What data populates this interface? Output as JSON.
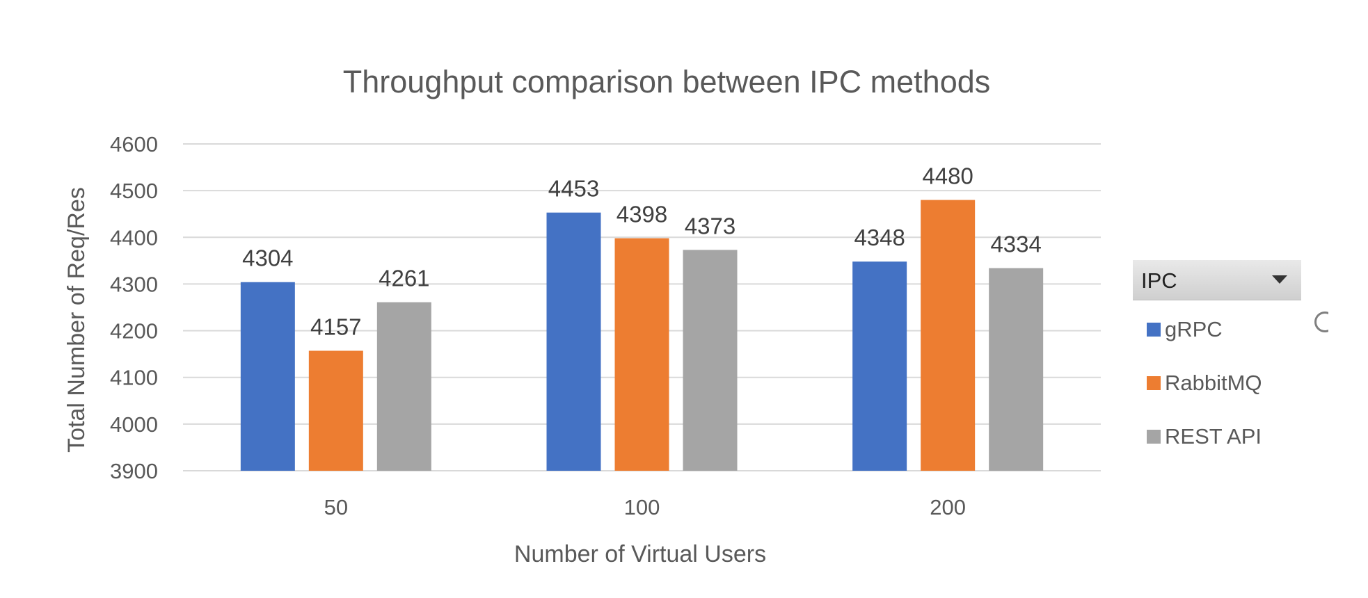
{
  "chart_data": {
    "type": "bar",
    "title": "Throughput comparison between IPC methods",
    "xlabel": "Number of Virtual Users",
    "ylabel": "Total Number of Req/Res",
    "categories": [
      "50",
      "100",
      "200"
    ],
    "ylim": [
      3900,
      4600
    ],
    "yticks": [
      3900,
      4000,
      4100,
      4200,
      4300,
      4400,
      4500,
      4600
    ],
    "grid": true,
    "legend_position": "right",
    "series": [
      {
        "name": "gRPC",
        "color": "#4472c4",
        "values": [
          4304,
          4453,
          4348
        ]
      },
      {
        "name": "RabbitMQ",
        "color": "#ed7d31",
        "values": [
          4157,
          4398,
          4480
        ]
      },
      {
        "name": "REST API",
        "color": "#a5a5a5",
        "values": [
          4261,
          4373,
          4334
        ]
      }
    ]
  },
  "legend": {
    "header_label": "IPC",
    "dropdown_icon": "triangle-down-icon"
  }
}
